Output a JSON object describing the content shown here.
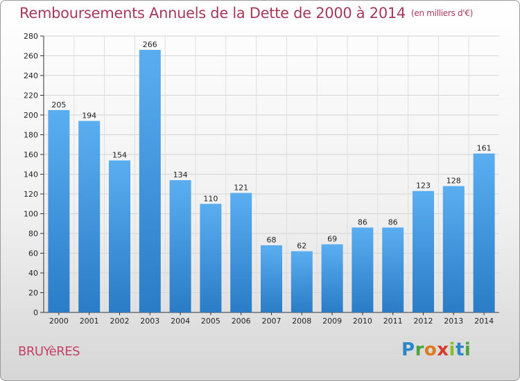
{
  "chart_data": {
    "type": "bar",
    "title": "Remboursements Annuels de la Dette de 2000 à 2014",
    "unit_note": "(en milliers d'€)",
    "categories": [
      "2000",
      "2001",
      "2002",
      "2003",
      "2004",
      "2005",
      "2006",
      "2007",
      "2008",
      "2009",
      "2010",
      "2011",
      "2012",
      "2013",
      "2014"
    ],
    "values": [
      205,
      194,
      154,
      266,
      134,
      110,
      121,
      68,
      62,
      69,
      86,
      86,
      123,
      128,
      161
    ],
    "xlabel": "",
    "ylabel": "",
    "ylim": [
      0,
      280
    ],
    "yticks": [
      0,
      20,
      40,
      60,
      80,
      100,
      120,
      140,
      160,
      180,
      200,
      220,
      240,
      260,
      280
    ],
    "grid": true,
    "bar_color": "#3a8fd6"
  },
  "commune": "BRUYèRES",
  "logo": {
    "text": "Proxiti",
    "colors": [
      "#2b86c8",
      "#4aa33b",
      "#e07a1f",
      "#d63b2b",
      "#8bbd2b"
    ]
  }
}
